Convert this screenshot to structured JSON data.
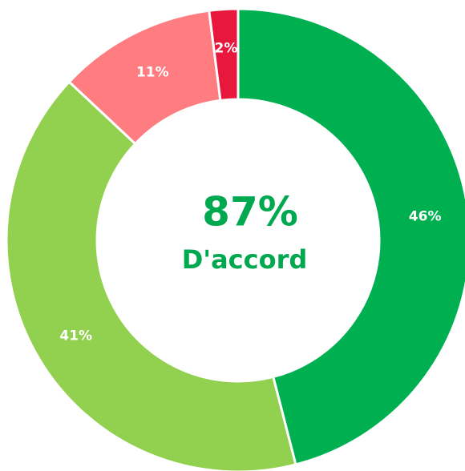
{
  "chart_data": {
    "type": "donut",
    "values": [
      46,
      41,
      11,
      2
    ],
    "value_labels": [
      "46%",
      "41%",
      "11%",
      "2%"
    ],
    "colors": [
      "#00b050",
      "#92d050",
      "#ff7c80",
      "#e8173c"
    ],
    "center_title": "87%",
    "center_subtitle": "D'accord"
  }
}
